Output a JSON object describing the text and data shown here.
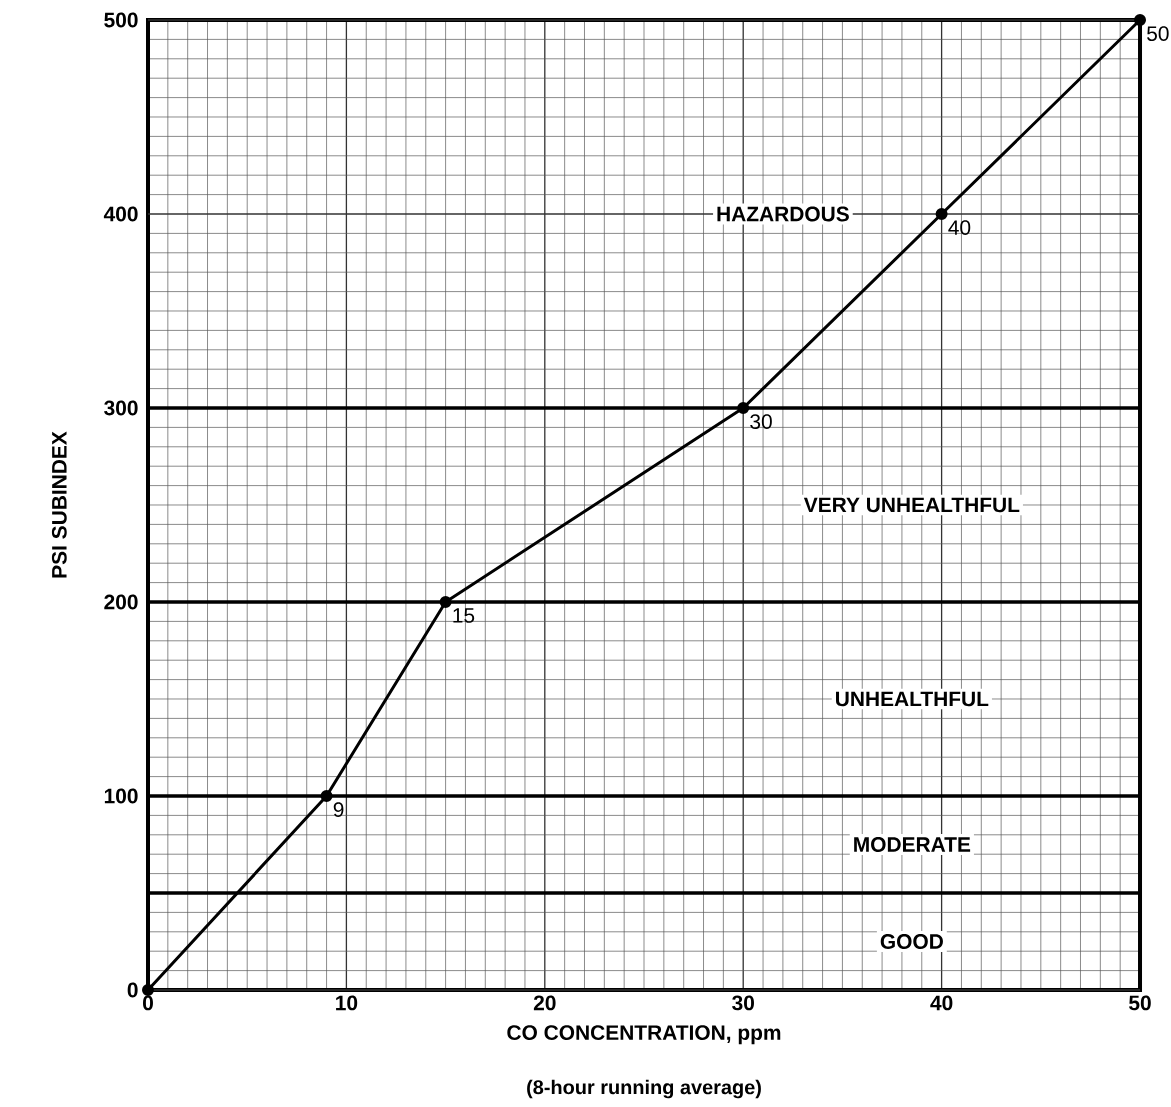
{
  "chart_data": {
    "type": "line",
    "xlabel": "CO CONCENTRATION, ppm",
    "ylabel": "PSI SUBINDEX",
    "x": [
      0,
      9,
      15,
      30,
      40,
      50
    ],
    "series": [
      {
        "color": "#000000",
        "values": [
          0,
          100,
          200,
          300,
          400,
          500
        ]
      }
    ],
    "xlim": [
      0,
      50
    ],
    "ylim": [
      0,
      500
    ],
    "xticks": [
      0,
      10,
      20,
      30,
      40,
      50
    ],
    "yticks": [
      0,
      100,
      200,
      300,
      400,
      500
    ],
    "grid": true,
    "marker": "circle",
    "line_style": "solid",
    "ref_lines": [
      {
        "axis": "y",
        "value": 50,
        "color": "#000000"
      },
      {
        "axis": "y",
        "value": 100,
        "color": "#000000"
      },
      {
        "axis": "y",
        "value": 200,
        "color": "#000000"
      },
      {
        "axis": "y",
        "value": 300,
        "color": "#000000"
      }
    ],
    "annotations": [
      "GOOD",
      "MODERATE",
      "UNHEALTHFUL",
      "VERY UNHEALTHFUL",
      "HAZARDOUS",
      {
        "text": "9",
        "x": 9,
        "y": 100
      },
      {
        "text": "15",
        "x": 15,
        "y": 200
      },
      {
        "text": "30",
        "x": 30,
        "y": 300
      },
      {
        "text": "40",
        "x": 40,
        "y": 400
      },
      {
        "text": "50",
        "x": 50,
        "y": 500
      },
      "(8-hour running average)"
    ]
  }
}
